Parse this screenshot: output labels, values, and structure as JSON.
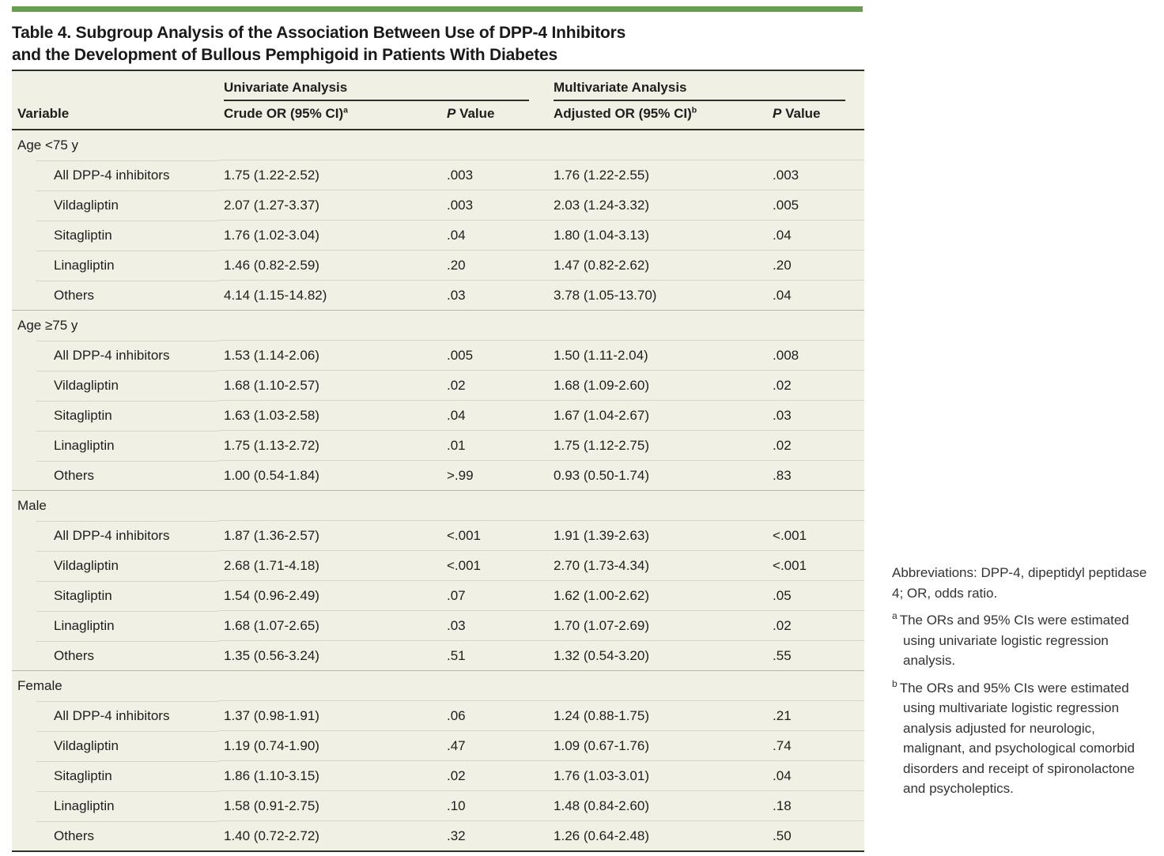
{
  "title": {
    "line1": "Table 4. Subgroup Analysis of the Association Between Use of DPP-4 Inhibitors",
    "line2": "and the Development of Bullous Pemphigoid in Patients With Diabetes"
  },
  "table": {
    "spanners": [
      {
        "label": "Univariate Analysis"
      },
      {
        "label": "Multivariate Analysis"
      }
    ],
    "columns": [
      {
        "label": "Variable"
      },
      {
        "label": "Crude OR (95% CI)",
        "sup": "a"
      },
      {
        "italic_prefix": "P",
        "rest": " Value"
      },
      {
        "label": "Adjusted OR (95% CI)",
        "sup": "b"
      },
      {
        "italic_prefix": "P",
        "rest": " Value"
      }
    ],
    "groups": [
      {
        "label": "Age <75 y",
        "rows": [
          {
            "cells": [
              "All DPP-4 inhibitors",
              "1.75 (1.22-2.52)",
              ".003",
              "1.76 (1.22-2.55)",
              ".003"
            ]
          },
          {
            "cells": [
              "Vildagliptin",
              "2.07 (1.27-3.37)",
              ".003",
              "2.03 (1.24-3.32)",
              ".005"
            ]
          },
          {
            "cells": [
              "Sitagliptin",
              "1.76 (1.02-3.04)",
              ".04",
              "1.80 (1.04-3.13)",
              ".04"
            ]
          },
          {
            "cells": [
              "Linagliptin",
              "1.46 (0.82-2.59)",
              ".20",
              "1.47 (0.82-2.62)",
              ".20"
            ]
          },
          {
            "cells": [
              "Others",
              "4.14 (1.15-14.82)",
              ".03",
              "3.78 (1.05-13.70)",
              ".04"
            ]
          }
        ]
      },
      {
        "label": "Age ≥75 y",
        "rows": [
          {
            "cells": [
              "All DPP-4 inhibitors",
              "1.53 (1.14-2.06)",
              ".005",
              "1.50 (1.11-2.04)",
              ".008"
            ]
          },
          {
            "cells": [
              "Vildagliptin",
              "1.68 (1.10-2.57)",
              ".02",
              "1.68 (1.09-2.60)",
              ".02"
            ]
          },
          {
            "cells": [
              "Sitagliptin",
              "1.63 (1.03-2.58)",
              ".04",
              "1.67 (1.04-2.67)",
              ".03"
            ]
          },
          {
            "cells": [
              "Linagliptin",
              "1.75 (1.13-2.72)",
              ".01",
              "1.75 (1.12-2.75)",
              ".02"
            ]
          },
          {
            "cells": [
              "Others",
              "1.00 (0.54-1.84)",
              ">.99",
              "0.93 (0.50-1.74)",
              ".83"
            ]
          }
        ]
      },
      {
        "label": "Male",
        "rows": [
          {
            "cells": [
              "All DPP-4 inhibitors",
              "1.87 (1.36-2.57)",
              "<.001",
              "1.91 (1.39-2.63)",
              "<.001"
            ]
          },
          {
            "cells": [
              "Vildagliptin",
              "2.68 (1.71-4.18)",
              "<.001",
              "2.70 (1.73-4.34)",
              "<.001"
            ]
          },
          {
            "cells": [
              "Sitagliptin",
              "1.54 (0.96-2.49)",
              ".07",
              "1.62 (1.00-2.62)",
              ".05"
            ]
          },
          {
            "cells": [
              "Linagliptin",
              "1.68 (1.07-2.65)",
              ".03",
              "1.70 (1.07-2.69)",
              ".02"
            ]
          },
          {
            "cells": [
              "Others",
              "1.35 (0.56-3.24)",
              ".51",
              "1.32 (0.54-3.20)",
              ".55"
            ]
          }
        ]
      },
      {
        "label": "Female",
        "rows": [
          {
            "cells": [
              "All DPP-4 inhibitors",
              "1.37 (0.98-1.91)",
              ".06",
              "1.24 (0.88-1.75)",
              ".21"
            ]
          },
          {
            "cells": [
              "Vildagliptin",
              "1.19 (0.74-1.90)",
              ".47",
              "1.09 (0.67-1.76)",
              ".74"
            ]
          },
          {
            "cells": [
              "Sitagliptin",
              "1.86 (1.10-3.15)",
              ".02",
              "1.76 (1.03-3.01)",
              ".04"
            ]
          },
          {
            "cells": [
              "Linagliptin",
              "1.58 (0.91-2.75)",
              ".10",
              "1.48 (0.84-2.60)",
              ".18"
            ]
          },
          {
            "cells": [
              "Others",
              "1.40 (0.72-2.72)",
              ".32",
              "1.26 (0.64-2.48)",
              ".50"
            ]
          }
        ]
      }
    ]
  },
  "footnotes": {
    "abbreviations": "Abbreviations: DPP-4, dipeptidyl peptidase 4; OR, odds ratio.",
    "notes": [
      {
        "marker": "a",
        "text": "The ORs and 95% CIs were estimated using univariate logistic regression analysis."
      },
      {
        "marker": "b",
        "text": "The ORs and 95% CIs were estimated using multivariate logistic regression analysis adjusted for neurologic, malignant, and psychological comorbid disorders and receipt of spironolactone and psycholeptics."
      }
    ]
  },
  "colors": {
    "accent_green": "#679e50",
    "table_background": "#f1f0e4",
    "dark_rule": "#2f2f2a",
    "row_rule": "#d6d5c7",
    "group_rule": "#b8b7a9",
    "text": "#1e1e1e",
    "footnote_text": "#333333"
  }
}
